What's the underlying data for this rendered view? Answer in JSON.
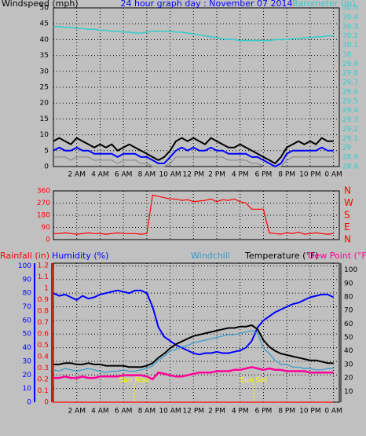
{
  "chart_data": [
    {
      "type": "line",
      "title": "24 hour graph day : November 07 2014",
      "ylabel": "Windspeed (mph)",
      "x": [
        0,
        0.5,
        1,
        1.5,
        2,
        2.5,
        3,
        3.5,
        4,
        4.5,
        5,
        5.5,
        6,
        6.5,
        7,
        7.5,
        8,
        8.5,
        9,
        9.5,
        10,
        10.5,
        11,
        11.5,
        12,
        12.5,
        13,
        13.5,
        14,
        14.5,
        15,
        15.5,
        16,
        16.5,
        17,
        17.5,
        18,
        18.5,
        19,
        19.5,
        20,
        20.5,
        21,
        21.5,
        22,
        22.5,
        23,
        23.5,
        24
      ],
      "xlim": [
        0,
        24.5
      ],
      "xticks": [
        {
          "value": 2,
          "label": "2 AM"
        },
        {
          "value": 4,
          "label": "4 AM"
        },
        {
          "value": 6,
          "label": "6 AM"
        },
        {
          "value": 8,
          "label": "8 AM"
        },
        {
          "value": 10,
          "label": "10 AM"
        },
        {
          "value": 12,
          "label": "12 PM"
        },
        {
          "value": 14,
          "label": "2 PM"
        },
        {
          "value": 16,
          "label": "4 PM"
        },
        {
          "value": 18,
          "label": "6 PM"
        },
        {
          "value": 20,
          "label": "8 PM"
        },
        {
          "value": 22,
          "label": "10 PM"
        },
        {
          "value": 24,
          "label": "0 AM"
        }
      ],
      "ylim": [
        0,
        50
      ],
      "yticks": [
        0,
        5,
        10,
        15,
        20,
        25,
        30,
        35,
        40,
        45,
        50
      ],
      "y2lim": [
        28.8,
        30.5
      ],
      "y2ticks": [
        28.8,
        28.9,
        29,
        29.1,
        29.2,
        29.3,
        29.4,
        29.5,
        29.6,
        29.7,
        29.8,
        29.9,
        30,
        30.1,
        30.2,
        30.3,
        30.4,
        30.5
      ],
      "grid": true,
      "series": [
        {
          "color": "#808080",
          "values": [
            3,
            3,
            3,
            2,
            3,
            3,
            3,
            2,
            2,
            2,
            2,
            1,
            2,
            2,
            2,
            1,
            1,
            0,
            0,
            0,
            1,
            3,
            3,
            3,
            3,
            3,
            3,
            3,
            3,
            3,
            2,
            2,
            2,
            2,
            1,
            1,
            0,
            0,
            0,
            0,
            2,
            3,
            3,
            3,
            3,
            3,
            3,
            3,
            3
          ]
        },
        {
          "color": "#000000",
          "values": [
            8,
            9,
            8,
            7,
            9,
            8,
            7,
            6,
            7,
            6,
            7,
            5,
            6,
            7,
            6,
            5,
            4,
            3,
            2,
            3,
            5,
            8,
            9,
            8,
            9,
            8,
            7,
            9,
            8,
            7,
            6,
            6,
            7,
            6,
            5,
            4,
            3,
            2,
            1,
            3,
            6,
            7,
            8,
            7,
            8,
            7,
            9,
            8,
            8
          ]
        },
        {
          "color": "#0000ff",
          "values": [
            5,
            6,
            5,
            5,
            6,
            5,
            5,
            4,
            4,
            4,
            4,
            3,
            4,
            4,
            4,
            3,
            3,
            2,
            1,
            1,
            3,
            5,
            6,
            5,
            6,
            5,
            5,
            6,
            5,
            5,
            4,
            4,
            4,
            4,
            3,
            3,
            2,
            1,
            0,
            1,
            4,
            5,
            5,
            5,
            5,
            5,
            6,
            5,
            5
          ]
        },
        {
          "name": "Barometer (in)",
          "color": "#33cccc",
          "axis": "y2",
          "values": [
            30.3,
            30.3,
            30.29,
            30.29,
            30.28,
            30.28,
            30.27,
            30.27,
            30.26,
            30.26,
            30.25,
            30.25,
            30.24,
            30.24,
            30.23,
            30.23,
            30.24,
            30.25,
            30.25,
            30.25,
            30.25,
            30.24,
            30.24,
            30.23,
            30.22,
            30.21,
            30.2,
            30.19,
            30.18,
            30.17,
            30.16,
            30.16,
            30.15,
            30.15,
            30.15,
            30.15,
            30.15,
            30.15,
            30.16,
            30.16,
            30.16,
            30.17,
            30.17,
            30.18,
            30.18,
            30.19,
            30.19,
            30.2,
            30.2
          ]
        }
      ]
    },
    {
      "type": "line",
      "x": [
        0,
        0.5,
        1,
        1.5,
        2,
        2.5,
        3,
        3.5,
        4,
        4.5,
        5,
        5.5,
        6,
        6.5,
        7,
        7.5,
        8,
        8.5,
        9,
        9.5,
        10,
        10.5,
        11,
        11.5,
        12,
        12.5,
        13,
        13.5,
        14,
        14.5,
        15,
        15.5,
        16,
        16.5,
        17,
        17.5,
        18,
        18.5,
        19,
        19.5,
        20,
        20.5,
        21,
        21.5,
        22,
        22.5,
        23,
        23.5,
        24
      ],
      "xlim": [
        0,
        24.5
      ],
      "xticks": [
        2,
        4,
        6,
        8,
        10,
        12,
        14,
        16,
        18,
        20,
        22,
        24
      ],
      "ylim": [
        0,
        360
      ],
      "yticks": [
        0,
        90,
        180,
        270,
        360
      ],
      "y2lim": [
        0,
        360
      ],
      "y2ticks": [
        {
          "value": 0,
          "label": "N"
        },
        {
          "value": 90,
          "label": "E"
        },
        {
          "value": 180,
          "label": "S"
        },
        {
          "value": 270,
          "label": "W"
        },
        {
          "value": 360,
          "label": "N"
        }
      ],
      "grid": true,
      "series": [
        {
          "color": "#ff0000",
          "values": [
            45,
            45,
            50,
            45,
            40,
            45,
            50,
            45,
            45,
            40,
            45,
            50,
            45,
            45,
            45,
            40,
            45,
            330,
            320,
            310,
            300,
            300,
            290,
            295,
            280,
            285,
            290,
            300,
            280,
            295,
            290,
            300,
            280,
            270,
            225,
            225,
            225,
            50,
            45,
            40,
            50,
            45,
            55,
            40,
            45,
            50,
            45,
            40,
            45
          ]
        }
      ]
    },
    {
      "type": "line",
      "x": [
        0,
        0.5,
        1,
        1.5,
        2,
        2.5,
        3,
        3.5,
        4,
        4.5,
        5,
        5.5,
        6,
        6.5,
        7,
        7.5,
        8,
        8.5,
        9,
        9.5,
        10,
        10.5,
        11,
        11.5,
        12,
        12.5,
        13,
        13.5,
        14,
        14.5,
        15,
        15.5,
        16,
        16.5,
        17,
        17.5,
        18,
        18.5,
        19,
        19.5,
        20,
        20.5,
        21,
        21.5,
        22,
        22.5,
        23,
        23.5,
        24
      ],
      "xlim": [
        0,
        24.5
      ],
      "xticks": [
        {
          "value": 2,
          "label": "2 AM"
        },
        {
          "value": 4,
          "label": "4 AM"
        },
        {
          "value": 6,
          "label": "6 AM"
        },
        {
          "value": 8,
          "label": "8 AM"
        },
        {
          "value": 10,
          "label": "10 AM"
        },
        {
          "value": 12,
          "label": "12 PM"
        },
        {
          "value": 14,
          "label": "2 PM"
        },
        {
          "value": 16,
          "label": "4 PM"
        },
        {
          "value": 18,
          "label": "6 PM"
        },
        {
          "value": 20,
          "label": "8 PM"
        },
        {
          "value": 22,
          "label": "10 PM"
        },
        {
          "value": 24,
          "label": "0 AM"
        }
      ],
      "ylim": [
        0,
        102
      ],
      "yticks": [
        0,
        10,
        20,
        30,
        40,
        50,
        60,
        70,
        80,
        90,
        100
      ],
      "y2lim": [
        2,
        105
      ],
      "y2ticks": [
        10,
        20,
        30,
        40,
        50,
        60,
        70,
        80,
        90,
        100
      ],
      "y3lim": [
        0,
        1.22
      ],
      "y3ticks": [
        0,
        0.1,
        0.2,
        0.3,
        0.4,
        0.5,
        0.6,
        0.7,
        0.8,
        0.9,
        1,
        1.1,
        1.2
      ],
      "grid": true,
      "series": [
        {
          "name": "Rainfall (in)",
          "color": "#ff0000",
          "axis": "y3",
          "values": [
            0,
            0,
            0,
            0,
            0,
            0,
            0,
            0,
            0,
            0,
            0,
            0,
            0,
            0,
            0,
            0,
            0,
            0,
            0,
            0,
            0,
            0,
            0,
            0,
            0,
            0,
            0,
            0,
            0,
            0,
            0,
            0,
            0,
            0,
            0,
            0,
            0,
            0,
            0,
            0,
            0,
            0,
            0,
            0,
            0,
            0,
            0,
            0,
            0
          ]
        },
        {
          "name": "Humidity (%)",
          "color": "#0000ff",
          "values": [
            80,
            78,
            79,
            77,
            75,
            78,
            76,
            77,
            79,
            80,
            81,
            82,
            81,
            80,
            82,
            82,
            80,
            70,
            55,
            48,
            45,
            42,
            40,
            38,
            36,
            35,
            36,
            36,
            37,
            36,
            36,
            37,
            38,
            40,
            45,
            55,
            60,
            63,
            66,
            68,
            70,
            72,
            73,
            75,
            77,
            78,
            79,
            79,
            77
          ]
        },
        {
          "name": "Windchill",
          "color": "#3399cc",
          "axis": "y2",
          "values": [
            26,
            25,
            27,
            26,
            25,
            26,
            27,
            26,
            25,
            24,
            25,
            25,
            26,
            25,
            25,
            26,
            27,
            29,
            33,
            36,
            40,
            41,
            43,
            44,
            46,
            47,
            48,
            49,
            50,
            51,
            52,
            52,
            53,
            54,
            55,
            53,
            42,
            38,
            33,
            30,
            30,
            28,
            28,
            27,
            27,
            26,
            26,
            27,
            27
          ]
        },
        {
          "name": "Temperature (°F)",
          "color": "#000000",
          "axis": "y2",
          "values": [
            30,
            30,
            31,
            31,
            30,
            30,
            31,
            30,
            30,
            29,
            29,
            29,
            29,
            28,
            28,
            28,
            29,
            31,
            35,
            38,
            42,
            45,
            47,
            49,
            51,
            52,
            53,
            54,
            55,
            56,
            57,
            57,
            58,
            58,
            59,
            56,
            48,
            43,
            40,
            38,
            37,
            36,
            35,
            34,
            33,
            33,
            32,
            31,
            31
          ]
        },
        {
          "name": "Dew Point (°F)",
          "color": "#ff0099",
          "axis": "y2",
          "values": [
            20,
            20,
            21,
            20,
            20,
            21,
            20,
            20,
            21,
            21,
            21,
            21,
            22,
            22,
            22,
            22,
            21,
            19,
            24,
            23,
            22,
            21,
            21,
            22,
            23,
            24,
            24,
            24,
            25,
            25,
            25,
            26,
            26,
            27,
            28,
            27,
            26,
            27,
            26,
            26,
            25,
            25,
            25,
            25,
            24,
            24,
            24,
            24,
            24
          ]
        }
      ],
      "annotations": [
        {
          "text": "Sun Rise",
          "x": 6.93
        },
        {
          "text": "Sun Set",
          "x": 17.16
        }
      ]
    }
  ]
}
